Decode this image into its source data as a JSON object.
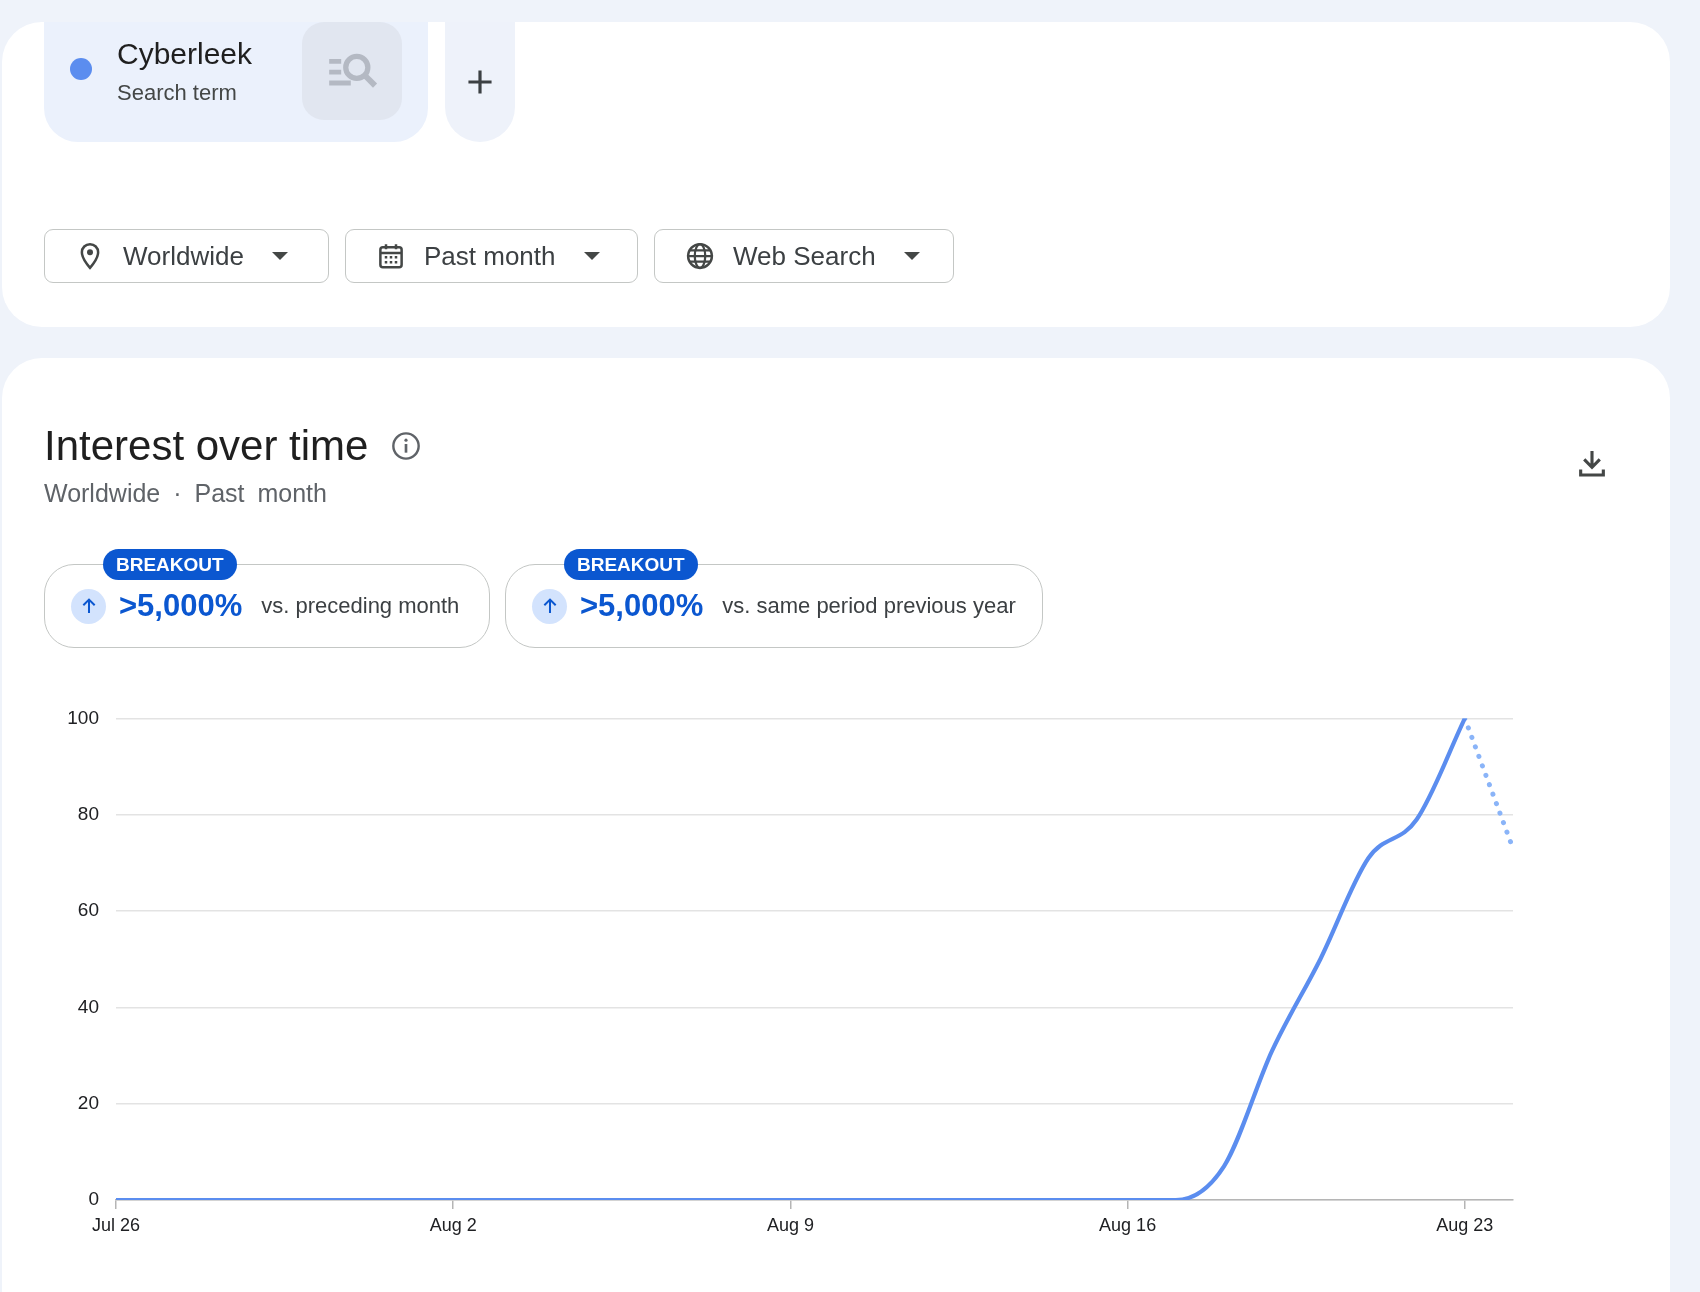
{
  "chart_data": {
    "type": "line",
    "title": "Interest over time",
    "subtitle": "Worldwide · Past month",
    "annotations": [
      "Search term",
      "Worldwide",
      "Past month",
      "Web Search",
      "BREAKOUT",
      ">5,000%",
      "vs. preceding month",
      "BREAKOUT",
      ">5,000%",
      "vs. same period previous year"
    ],
    "series": [
      {
        "name": "Cyberleek",
        "color": "#5b8def",
        "x": [
          "--07-26",
          "--07-27",
          "--07-28",
          "--07-29",
          "--07-30",
          "--07-31",
          "--08-01",
          "--08-02",
          "--08-03",
          "--08-04",
          "--08-05",
          "--08-06",
          "--08-07",
          "--08-08",
          "--08-09",
          "--08-10",
          "--08-11",
          "--08-12",
          "--08-13",
          "--08-14",
          "--08-15",
          "--08-16",
          "--08-17",
          "--08-18",
          "--08-19",
          "--08-20",
          "--08-21",
          "--08-22",
          "--08-23"
        ],
        "values": [
          0,
          0,
          0,
          0,
          0,
          0,
          0,
          0,
          0,
          0,
          0,
          0,
          0,
          0,
          0,
          0,
          0,
          0,
          0,
          0,
          0,
          0,
          0,
          7,
          31,
          50,
          71,
          79,
          100
        ]
      },
      {
        "color": "#8ab4f8",
        "line_style": "dotted",
        "x": [
          "--08-23",
          "--08-24"
        ],
        "values": [
          100,
          73
        ]
      }
    ],
    "xlim": [
      "--07-26",
      "--08-24"
    ],
    "xticks": [
      {
        "value": "--07-26",
        "label": "Jul 26"
      },
      {
        "value": "--08-02",
        "label": "Aug 2"
      },
      {
        "value": "--08-09",
        "label": "Aug 9"
      },
      {
        "value": "--08-16",
        "label": "Aug 16"
      },
      {
        "value": "--08-23",
        "label": "Aug 23"
      }
    ],
    "ylim": [
      0,
      100
    ],
    "yticks": [
      0,
      20,
      40,
      60,
      80,
      100
    ],
    "grid": "y",
    "legend": "top left"
  }
}
